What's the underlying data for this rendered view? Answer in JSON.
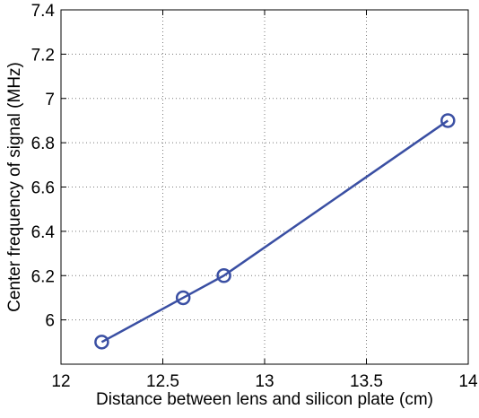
{
  "chart_data": {
    "type": "line",
    "title": "",
    "xlabel": "Distance between lens and silicon plate (cm)",
    "ylabel": "Center frequency of signal (MHz)",
    "xlim": [
      12,
      14
    ],
    "ylim": [
      5.8,
      7.4
    ],
    "x_ticks": [
      12,
      12.5,
      13,
      13.5,
      14
    ],
    "x_tick_labels": [
      "12",
      "12.5",
      "13",
      "13.5",
      "14"
    ],
    "y_ticks": [
      6,
      6.2,
      6.4,
      6.6,
      6.8,
      7,
      7.2,
      7.4
    ],
    "y_tick_labels": [
      "6",
      "6.2",
      "6.4",
      "6.6",
      "6.8",
      "7",
      "7.2",
      "7.4"
    ],
    "grid": true,
    "grid_style": "dotted",
    "legend": "none",
    "series": [
      {
        "x": [
          12.2,
          12.6,
          12.8,
          13.9
        ],
        "y": [
          5.9,
          6.1,
          6.2,
          6.9
        ],
        "color": "#3a4fa3",
        "marker": "circle-open"
      }
    ]
  }
}
